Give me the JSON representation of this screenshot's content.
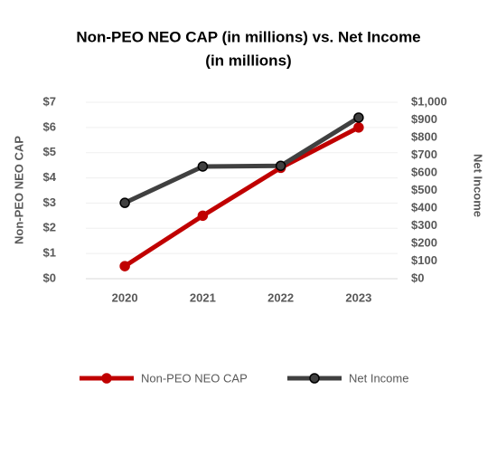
{
  "chart_data": {
    "type": "line",
    "title": [
      "Non-PEO NEO CAP (in millions) vs. Net Income",
      "(in millions)"
    ],
    "categories": [
      "2020",
      "2021",
      "2022",
      "2023"
    ],
    "y_label": "Non-PEO NEO CAP",
    "y2_label": "Net Income",
    "ylim": [
      0,
      7
    ],
    "yticks": [
      {
        "value": 0,
        "label": "$0"
      },
      {
        "value": 1,
        "label": "$1"
      },
      {
        "value": 2,
        "label": "$2"
      },
      {
        "value": 3,
        "label": "$3"
      },
      {
        "value": 4,
        "label": "$4"
      },
      {
        "value": 5,
        "label": "$5"
      },
      {
        "value": 6,
        "label": "$6"
      },
      {
        "value": 7,
        "label": "$7"
      }
    ],
    "y2lim": [
      0,
      1000
    ],
    "y2ticks": [
      {
        "value": 0,
        "label": "$0"
      },
      {
        "value": 100,
        "label": "$100"
      },
      {
        "value": 200,
        "label": "$200"
      },
      {
        "value": 300,
        "label": "$300"
      },
      {
        "value": 400,
        "label": "$400"
      },
      {
        "value": 500,
        "label": "$500"
      },
      {
        "value": 600,
        "label": "$600"
      },
      {
        "value": 700,
        "label": "$700"
      },
      {
        "value": 800,
        "label": "$800"
      },
      {
        "value": 900,
        "label": "$900"
      },
      {
        "value": 1000,
        "label": "$1,000"
      }
    ],
    "grid": true,
    "legend": "bottom",
    "series": [
      {
        "name": "Non-PEO NEO CAP",
        "color": "#c00000",
        "values": [
          0.5,
          2.5,
          4.4,
          6.0
        ]
      },
      {
        "name": "Net Income",
        "color": "#404040",
        "axis": "y2",
        "values": [
          430,
          636,
          640,
          913
        ]
      }
    ]
  }
}
